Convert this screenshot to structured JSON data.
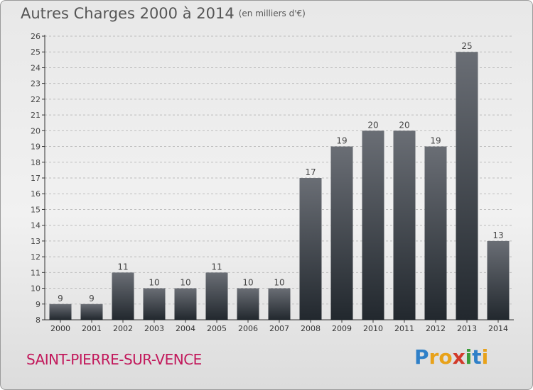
{
  "header": {
    "title": "Autres Charges 2000 à 2014",
    "subtitle": "(en milliers d'€)"
  },
  "commune": "SAINT-PIERRE-SUR-VENCE",
  "logo": {
    "text": "Proxiti",
    "letters": [
      {
        "ch": "P",
        "color": "#2f80c8"
      },
      {
        "ch": "r",
        "color": "#e8a21a"
      },
      {
        "ch": "o",
        "color": "#e8a21a"
      },
      {
        "ch": "x",
        "color": "#d23a2a"
      },
      {
        "ch": "i",
        "color": "#3a9e3a"
      },
      {
        "ch": "t",
        "color": "#2f80c8"
      },
      {
        "ch": "i",
        "color": "#e8a21a"
      }
    ]
  },
  "colors": {
    "bar_top": "#6a6e75",
    "bar_bottom": "#22282e",
    "axis": "#333333",
    "grid": "#bdbdbd",
    "commune": "#c2185b"
  },
  "chart_data": {
    "type": "bar",
    "categories": [
      "2000",
      "2001",
      "2002",
      "2003",
      "2004",
      "2005",
      "2006",
      "2007",
      "2008",
      "2009",
      "2010",
      "2011",
      "2012",
      "2013",
      "2014"
    ],
    "values": [
      9,
      9,
      11,
      10,
      10,
      11,
      10,
      10,
      17,
      19,
      20,
      20,
      19,
      25,
      13
    ],
    "ylim": [
      8,
      26
    ],
    "yticks": [
      8,
      9,
      10,
      11,
      12,
      13,
      14,
      15,
      16,
      17,
      18,
      19,
      20,
      21,
      22,
      23,
      24,
      25,
      26
    ],
    "data_labels": true,
    "grid": "dashed-horizontal"
  }
}
